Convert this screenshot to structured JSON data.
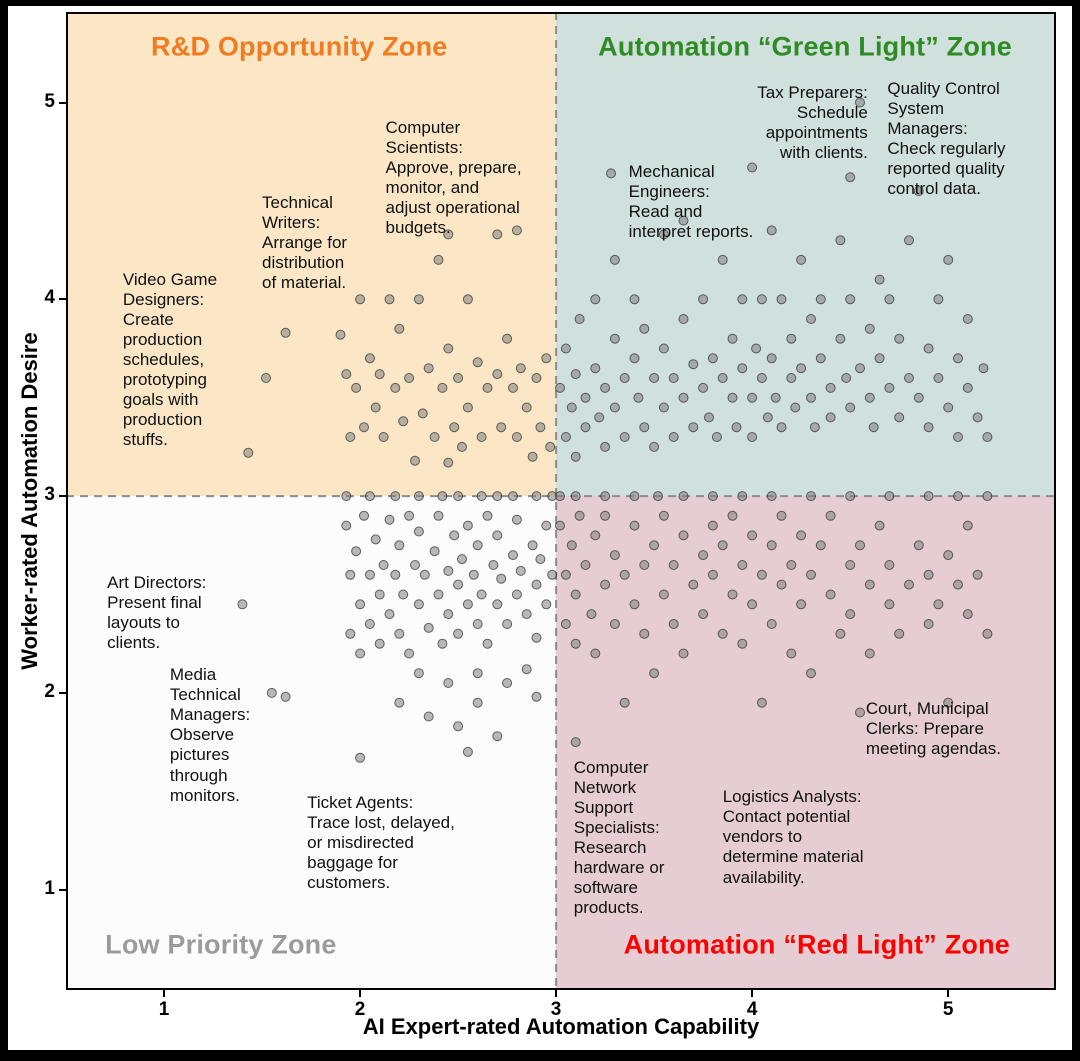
{
  "chart_data": {
    "type": "scatter",
    "title": "",
    "xlabel": "AI Expert-rated Automation Capability",
    "ylabel": "Worker-rated Automation Desire",
    "xlim": [
      0.5,
      5.55
    ],
    "ylim": [
      0.49,
      5.46
    ],
    "x_ticks": [
      1,
      2,
      3,
      4,
      5
    ],
    "y_ticks": [
      1,
      2,
      3,
      4,
      5
    ],
    "quadrant_divider": {
      "x": 3,
      "y": 3,
      "line_color": "#8C8C8C",
      "line_style": "dashed"
    },
    "marker": {
      "fill": "#7F7F7F",
      "edge": "#2B2B2B",
      "radius": 4.5,
      "fill_opacity": 0.55,
      "edge_opacity": 0.7
    },
    "zones": [
      {
        "id": "rd-opportunity",
        "label": "R&D Opportunity Zone",
        "text_color": "#F07B21",
        "bg_color": "#FBE7C6",
        "x": 1.69,
        "y": 5.28
      },
      {
        "id": "green-light",
        "label": "Automation “Green Light” Zone",
        "text_color": "#2F8B24",
        "bg_color": "#CFE0DD",
        "x": 4.27,
        "y": 5.28
      },
      {
        "id": "low-priority",
        "label": "Low Priority Zone",
        "text_color": "#9B9B9B",
        "bg_color": "#FCFCFC",
        "x": 1.29,
        "y": 0.72
      },
      {
        "id": "red-light",
        "label": "Automation “Red Light” Zone",
        "text_color": "#FF0000",
        "bg_color": "#E6CDD3",
        "x": 4.33,
        "y": 0.72
      }
    ],
    "annotations": [
      {
        "id": "video-game-designers",
        "x": 0.79,
        "y": 4.15,
        "align": "left",
        "text": "Video Game\nDesigners:\nCreate\nproduction\nschedules,\nprototyping\ngoals with\nproduction\nstuffs."
      },
      {
        "id": "technical-writers",
        "x": 1.5,
        "y": 4.54,
        "align": "left",
        "text": "Technical\nWriters:\nArrange for\ndistribution\nof material."
      },
      {
        "id": "computer-scientists",
        "x": 2.13,
        "y": 4.92,
        "align": "left",
        "text": "Computer\nScientists:\nApprove, prepare,\nmonitor, and\nadjust operational\nbudgets."
      },
      {
        "id": "mechanical-engineers",
        "x": 3.37,
        "y": 4.7,
        "align": "left",
        "text": "Mechanical\nEngineers:\nRead and\ninterpret reports."
      },
      {
        "id": "tax-preparers",
        "x": 4.59,
        "y": 5.1,
        "align": "right",
        "text": "Tax Preparers:\nSchedule\nappointments\nwith clients."
      },
      {
        "id": "quality-control-system-managers",
        "x": 4.69,
        "y": 5.12,
        "align": "left",
        "text": "Quality Control\nSystem\nManagers:\nCheck regularly\nreported quality\ncontrol data."
      },
      {
        "id": "art-directors",
        "x": 0.71,
        "y": 2.61,
        "align": "left",
        "text": "Art Directors:\nPresent final\nlayouts to\nclients."
      },
      {
        "id": "media-technical-managers",
        "x": 1.03,
        "y": 2.14,
        "align": "left",
        "text": "Media\nTechnical\nManagers:\nObserve\npictures\nthrough\nmonitors."
      },
      {
        "id": "ticket-agents",
        "x": 1.73,
        "y": 1.49,
        "align": "left",
        "text": "Ticket Agents:\nTrace lost, delayed,\nor misdirected\nbaggage for\ncustomers."
      },
      {
        "id": "computer-network-support-specialists",
        "x": 3.09,
        "y": 1.67,
        "align": "left",
        "text": "Computer\nNetwork\nSupport\nSpecialists:\nResearch\nhardware or\nsoftware\nproducts."
      },
      {
        "id": "logistics-analysts",
        "x": 3.85,
        "y": 1.52,
        "align": "left",
        "text": "Logistics Analysts:\nContact potential\nvendors to\ndetermine material\navailability."
      },
      {
        "id": "court-municipal-clerks",
        "x": 4.58,
        "y": 1.97,
        "align": "left",
        "text": "Court, Municipal\nClerks: Prepare\nmeeting agendas."
      }
    ],
    "points": [
      [
        1.43,
        3.22
      ],
      [
        1.52,
        3.6
      ],
      [
        1.62,
        3.83
      ],
      [
        1.9,
        3.82
      ],
      [
        1.93,
        3.62
      ],
      [
        1.95,
        3.3
      ],
      [
        1.98,
        3.55
      ],
      [
        2.0,
        4.0
      ],
      [
        2.02,
        3.35
      ],
      [
        2.05,
        3.7
      ],
      [
        2.08,
        3.45
      ],
      [
        2.1,
        3.62
      ],
      [
        2.12,
        3.3
      ],
      [
        2.15,
        4.0
      ],
      [
        2.18,
        3.55
      ],
      [
        2.2,
        3.85
      ],
      [
        2.22,
        3.38
      ],
      [
        2.25,
        3.6
      ],
      [
        2.28,
        3.18
      ],
      [
        2.3,
        4.0
      ],
      [
        2.32,
        3.42
      ],
      [
        2.35,
        3.65
      ],
      [
        2.38,
        3.3
      ],
      [
        2.4,
        4.2
      ],
      [
        2.42,
        3.55
      ],
      [
        2.45,
        4.33
      ],
      [
        2.45,
        3.75
      ],
      [
        2.45,
        3.17
      ],
      [
        2.48,
        3.35
      ],
      [
        2.5,
        3.6
      ],
      [
        2.52,
        3.25
      ],
      [
        2.55,
        4.0
      ],
      [
        2.55,
        3.45
      ],
      [
        2.6,
        3.68
      ],
      [
        2.62,
        3.3
      ],
      [
        2.65,
        3.55
      ],
      [
        2.7,
        4.33
      ],
      [
        2.7,
        3.62
      ],
      [
        2.72,
        3.35
      ],
      [
        2.75,
        3.8
      ],
      [
        2.78,
        3.55
      ],
      [
        2.8,
        4.35
      ],
      [
        2.8,
        3.3
      ],
      [
        2.82,
        3.65
      ],
      [
        2.85,
        3.45
      ],
      [
        2.88,
        3.2
      ],
      [
        2.9,
        3.6
      ],
      [
        2.92,
        3.35
      ],
      [
        2.95,
        3.7
      ],
      [
        2.97,
        3.25
      ],
      [
        1.93,
        3.0
      ],
      [
        2.05,
        3.0
      ],
      [
        2.18,
        3.0
      ],
      [
        2.3,
        3.0
      ],
      [
        2.42,
        3.0
      ],
      [
        2.5,
        3.0
      ],
      [
        2.62,
        3.0
      ],
      [
        2.7,
        3.0
      ],
      [
        2.78,
        3.0
      ],
      [
        2.9,
        3.0
      ],
      [
        2.98,
        3.0
      ],
      [
        3.02,
        3.0
      ],
      [
        3.1,
        3.0
      ],
      [
        3.25,
        3.0
      ],
      [
        3.4,
        3.0
      ],
      [
        3.52,
        3.0
      ],
      [
        3.65,
        3.0
      ],
      [
        3.8,
        3.0
      ],
      [
        3.95,
        3.0
      ],
      [
        4.1,
        3.0
      ],
      [
        4.3,
        3.0
      ],
      [
        4.5,
        3.0
      ],
      [
        4.7,
        3.0
      ],
      [
        4.9,
        3.0
      ],
      [
        5.05,
        3.0
      ],
      [
        5.2,
        3.0
      ],
      [
        1.4,
        2.45
      ],
      [
        1.55,
        2.0
      ],
      [
        1.62,
        1.98
      ],
      [
        1.93,
        2.85
      ],
      [
        1.95,
        2.6
      ],
      [
        1.95,
        2.3
      ],
      [
        1.98,
        2.72
      ],
      [
        2.0,
        2.45
      ],
      [
        2.0,
        2.2
      ],
      [
        2.02,
        2.9
      ],
      [
        2.05,
        2.6
      ],
      [
        2.05,
        2.35
      ],
      [
        2.08,
        2.78
      ],
      [
        2.1,
        2.5
      ],
      [
        2.1,
        2.25
      ],
      [
        2.12,
        2.65
      ],
      [
        2.15,
        2.88
      ],
      [
        2.15,
        2.4
      ],
      [
        2.18,
        2.6
      ],
      [
        2.2,
        2.3
      ],
      [
        2.2,
        2.75
      ],
      [
        2.22,
        2.5
      ],
      [
        2.25,
        2.9
      ],
      [
        2.25,
        2.2
      ],
      [
        2.28,
        2.65
      ],
      [
        2.3,
        2.45
      ],
      [
        2.3,
        2.82
      ],
      [
        2.33,
        2.6
      ],
      [
        2.35,
        2.33
      ],
      [
        2.38,
        2.72
      ],
      [
        2.4,
        2.5
      ],
      [
        2.4,
        2.9
      ],
      [
        2.42,
        2.25
      ],
      [
        2.45,
        2.62
      ],
      [
        2.45,
        2.4
      ],
      [
        2.48,
        2.8
      ],
      [
        2.5,
        2.55
      ],
      [
        2.5,
        2.3
      ],
      [
        2.52,
        2.68
      ],
      [
        2.55,
        2.45
      ],
      [
        2.55,
        2.85
      ],
      [
        2.58,
        2.6
      ],
      [
        2.6,
        2.35
      ],
      [
        2.6,
        2.75
      ],
      [
        2.62,
        2.5
      ],
      [
        2.65,
        2.9
      ],
      [
        2.65,
        2.25
      ],
      [
        2.68,
        2.65
      ],
      [
        2.7,
        2.45
      ],
      [
        2.7,
        2.8
      ],
      [
        2.72,
        2.58
      ],
      [
        2.75,
        2.35
      ],
      [
        2.78,
        2.7
      ],
      [
        2.8,
        2.5
      ],
      [
        2.8,
        2.88
      ],
      [
        2.82,
        2.62
      ],
      [
        2.85,
        2.4
      ],
      [
        2.88,
        2.75
      ],
      [
        2.9,
        2.55
      ],
      [
        2.9,
        2.28
      ],
      [
        2.92,
        2.68
      ],
      [
        2.95,
        2.85
      ],
      [
        2.95,
        2.45
      ],
      [
        2.98,
        2.6
      ],
      [
        2.0,
        1.67
      ],
      [
        2.2,
        1.95
      ],
      [
        2.35,
        1.88
      ],
      [
        2.5,
        1.83
      ],
      [
        2.55,
        1.7
      ],
      [
        2.6,
        1.95
      ],
      [
        2.7,
        1.78
      ],
      [
        2.45,
        2.05
      ],
      [
        2.3,
        2.1
      ],
      [
        2.6,
        2.1
      ],
      [
        2.75,
        2.05
      ],
      [
        2.85,
        2.12
      ],
      [
        2.9,
        1.98
      ],
      [
        3.02,
        3.55
      ],
      [
        3.05,
        3.3
      ],
      [
        3.05,
        3.75
      ],
      [
        3.08,
        3.45
      ],
      [
        3.1,
        3.62
      ],
      [
        3.1,
        3.2
      ],
      [
        3.12,
        3.9
      ],
      [
        3.15,
        3.5
      ],
      [
        3.15,
        3.35
      ],
      [
        3.2,
        4.0
      ],
      [
        3.2,
        3.65
      ],
      [
        3.22,
        3.4
      ],
      [
        3.25,
        3.55
      ],
      [
        3.25,
        3.25
      ],
      [
        3.28,
        4.64
      ],
      [
        3.3,
        4.2
      ],
      [
        3.3,
        3.8
      ],
      [
        3.3,
        3.45
      ],
      [
        3.35,
        3.6
      ],
      [
        3.35,
        3.3
      ],
      [
        3.4,
        4.0
      ],
      [
        3.4,
        3.7
      ],
      [
        3.42,
        3.5
      ],
      [
        3.45,
        3.85
      ],
      [
        3.45,
        3.35
      ],
      [
        3.5,
        3.6
      ],
      [
        3.5,
        3.25
      ],
      [
        3.55,
        4.33
      ],
      [
        3.55,
        3.75
      ],
      [
        3.55,
        3.45
      ],
      [
        3.6,
        3.6
      ],
      [
        3.6,
        3.3
      ],
      [
        3.65,
        4.4
      ],
      [
        3.65,
        3.9
      ],
      [
        3.65,
        3.5
      ],
      [
        3.7,
        3.67
      ],
      [
        3.7,
        3.35
      ],
      [
        3.75,
        4.0
      ],
      [
        3.75,
        3.55
      ],
      [
        3.78,
        3.4
      ],
      [
        3.8,
        3.7
      ],
      [
        3.82,
        3.3
      ],
      [
        3.85,
        4.2
      ],
      [
        3.85,
        3.6
      ],
      [
        3.9,
        3.8
      ],
      [
        3.9,
        3.5
      ],
      [
        3.92,
        3.35
      ],
      [
        3.95,
        4.0
      ],
      [
        3.95,
        3.65
      ],
      [
        4.0,
        4.67
      ],
      [
        4.0,
        3.5
      ],
      [
        4.0,
        3.3
      ],
      [
        4.02,
        3.75
      ],
      [
        4.05,
        4.0
      ],
      [
        4.05,
        3.6
      ],
      [
        4.08,
        3.4
      ],
      [
        4.1,
        4.35
      ],
      [
        4.1,
        3.7
      ],
      [
        4.12,
        3.5
      ],
      [
        4.15,
        4.0
      ],
      [
        4.15,
        3.35
      ],
      [
        4.2,
        3.8
      ],
      [
        4.2,
        3.6
      ],
      [
        4.22,
        3.45
      ],
      [
        4.25,
        4.2
      ],
      [
        4.25,
        3.65
      ],
      [
        4.3,
        3.9
      ],
      [
        4.3,
        3.5
      ],
      [
        4.32,
        3.35
      ],
      [
        4.35,
        4.0
      ],
      [
        4.35,
        3.7
      ],
      [
        4.4,
        3.55
      ],
      [
        4.4,
        3.4
      ],
      [
        4.45,
        4.3
      ],
      [
        4.45,
        3.8
      ],
      [
        4.48,
        3.6
      ],
      [
        4.5,
        4.62
      ],
      [
        4.5,
        4.0
      ],
      [
        4.5,
        3.45
      ],
      [
        4.55,
        5.0
      ],
      [
        4.55,
        3.65
      ],
      [
        4.6,
        3.85
      ],
      [
        4.6,
        3.5
      ],
      [
        4.62,
        3.35
      ],
      [
        4.65,
        4.1
      ],
      [
        4.65,
        3.7
      ],
      [
        4.7,
        4.0
      ],
      [
        4.7,
        3.55
      ],
      [
        4.75,
        3.8
      ],
      [
        4.75,
        3.4
      ],
      [
        4.8,
        4.3
      ],
      [
        4.8,
        3.6
      ],
      [
        4.85,
        4.55
      ],
      [
        4.85,
        3.5
      ],
      [
        4.9,
        3.75
      ],
      [
        4.9,
        3.35
      ],
      [
        4.95,
        4.0
      ],
      [
        4.95,
        3.6
      ],
      [
        5.0,
        4.2
      ],
      [
        5.0,
        3.45
      ],
      [
        5.05,
        3.7
      ],
      [
        5.05,
        3.3
      ],
      [
        5.1,
        3.9
      ],
      [
        5.1,
        3.55
      ],
      [
        5.15,
        3.4
      ],
      [
        5.18,
        3.65
      ],
      [
        5.2,
        3.3
      ],
      [
        3.02,
        2.85
      ],
      [
        3.05,
        2.6
      ],
      [
        3.05,
        2.35
      ],
      [
        3.08,
        2.75
      ],
      [
        3.1,
        2.5
      ],
      [
        3.1,
        2.25
      ],
      [
        3.12,
        2.9
      ],
      [
        3.15,
        2.65
      ],
      [
        3.18,
        2.4
      ],
      [
        3.2,
        2.8
      ],
      [
        3.2,
        2.2
      ],
      [
        3.25,
        2.9
      ],
      [
        3.25,
        2.55
      ],
      [
        3.3,
        2.7
      ],
      [
        3.3,
        2.35
      ],
      [
        3.35,
        2.6
      ],
      [
        3.35,
        1.95
      ],
      [
        3.4,
        2.85
      ],
      [
        3.4,
        2.45
      ],
      [
        3.45,
        2.65
      ],
      [
        3.45,
        2.3
      ],
      [
        3.5,
        2.75
      ],
      [
        3.5,
        2.1
      ],
      [
        3.55,
        2.9
      ],
      [
        3.55,
        2.5
      ],
      [
        3.6,
        2.65
      ],
      [
        3.6,
        2.35
      ],
      [
        3.65,
        2.8
      ],
      [
        3.65,
        2.2
      ],
      [
        3.7,
        2.55
      ],
      [
        3.75,
        2.7
      ],
      [
        3.75,
        2.4
      ],
      [
        3.8,
        2.85
      ],
      [
        3.8,
        2.6
      ],
      [
        3.85,
        2.75
      ],
      [
        3.85,
        2.3
      ],
      [
        3.9,
        2.9
      ],
      [
        3.9,
        2.5
      ],
      [
        3.95,
        2.65
      ],
      [
        3.95,
        2.25
      ],
      [
        4.0,
        2.8
      ],
      [
        4.0,
        2.45
      ],
      [
        4.05,
        2.6
      ],
      [
        4.05,
        1.95
      ],
      [
        4.1,
        2.75
      ],
      [
        4.1,
        2.35
      ],
      [
        4.15,
        2.9
      ],
      [
        4.15,
        2.55
      ],
      [
        4.2,
        2.65
      ],
      [
        4.2,
        2.2
      ],
      [
        4.25,
        2.8
      ],
      [
        4.25,
        2.45
      ],
      [
        4.3,
        2.6
      ],
      [
        4.3,
        2.1
      ],
      [
        4.35,
        2.75
      ],
      [
        4.4,
        2.9
      ],
      [
        4.4,
        2.5
      ],
      [
        4.45,
        2.3
      ],
      [
        4.5,
        2.65
      ],
      [
        4.5,
        2.4
      ],
      [
        4.55,
        2.75
      ],
      [
        4.55,
        1.9
      ],
      [
        4.6,
        2.55
      ],
      [
        4.6,
        2.2
      ],
      [
        4.65,
        2.85
      ],
      [
        4.7,
        2.65
      ],
      [
        4.7,
        2.45
      ],
      [
        4.75,
        2.3
      ],
      [
        4.8,
        2.55
      ],
      [
        4.85,
        2.75
      ],
      [
        4.9,
        2.6
      ],
      [
        4.9,
        2.35
      ],
      [
        4.95,
        2.45
      ],
      [
        5.0,
        2.7
      ],
      [
        5.0,
        1.95
      ],
      [
        5.05,
        2.55
      ],
      [
        5.1,
        2.85
      ],
      [
        5.1,
        2.4
      ],
      [
        5.15,
        2.6
      ],
      [
        5.2,
        2.3
      ],
      [
        3.1,
        1.75
      ]
    ]
  }
}
